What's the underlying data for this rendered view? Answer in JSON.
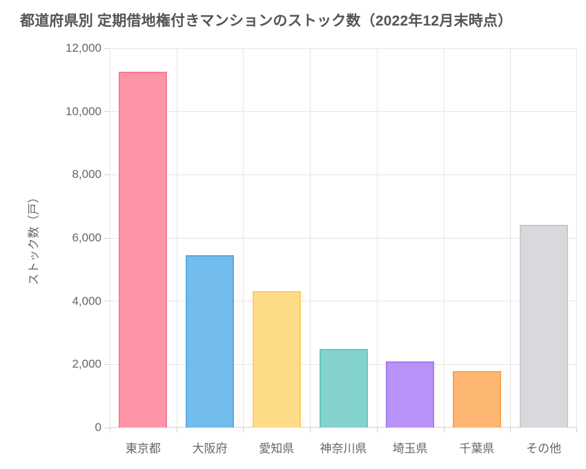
{
  "page": {
    "background": "#ffffff"
  },
  "chart_data": {
    "type": "bar",
    "title": "都道府県別 定期借地権付きマンションのストック数（2022年12月末時点）",
    "xlabel": "",
    "ylabel": "ストック数（戸）",
    "categories": [
      "東京都",
      "大阪府",
      "愛知県",
      "神奈川県",
      "埼玉県",
      "千葉県",
      "その他"
    ],
    "values": [
      11250,
      5450,
      4320,
      2490,
      2090,
      1780,
      6420
    ],
    "ylim": [
      0,
      12000
    ],
    "yticks": [
      0,
      2000,
      4000,
      6000,
      8000,
      10000,
      12000
    ],
    "ytick_labels": [
      "0",
      "2,000",
      "4,000",
      "6,000",
      "8,000",
      "10,000",
      "12,000"
    ],
    "grid": true,
    "legend": "none",
    "bar_colors": [
      "#fd94a7",
      "#73bcee",
      "#fedc87",
      "#83d3cc",
      "#b793f8",
      "#feb673",
      "#d8d9dc"
    ],
    "bar_border_colors": [
      "#f87b96",
      "#56aae6",
      "#f9cf64",
      "#63c7be",
      "#a57df2",
      "#fca24d",
      "#c7c9ce"
    ],
    "colors": {
      "grid": "#e6e6e6",
      "axis": "#d2d2d2",
      "tick_text": "#666666",
      "title_text": "#545454"
    }
  }
}
